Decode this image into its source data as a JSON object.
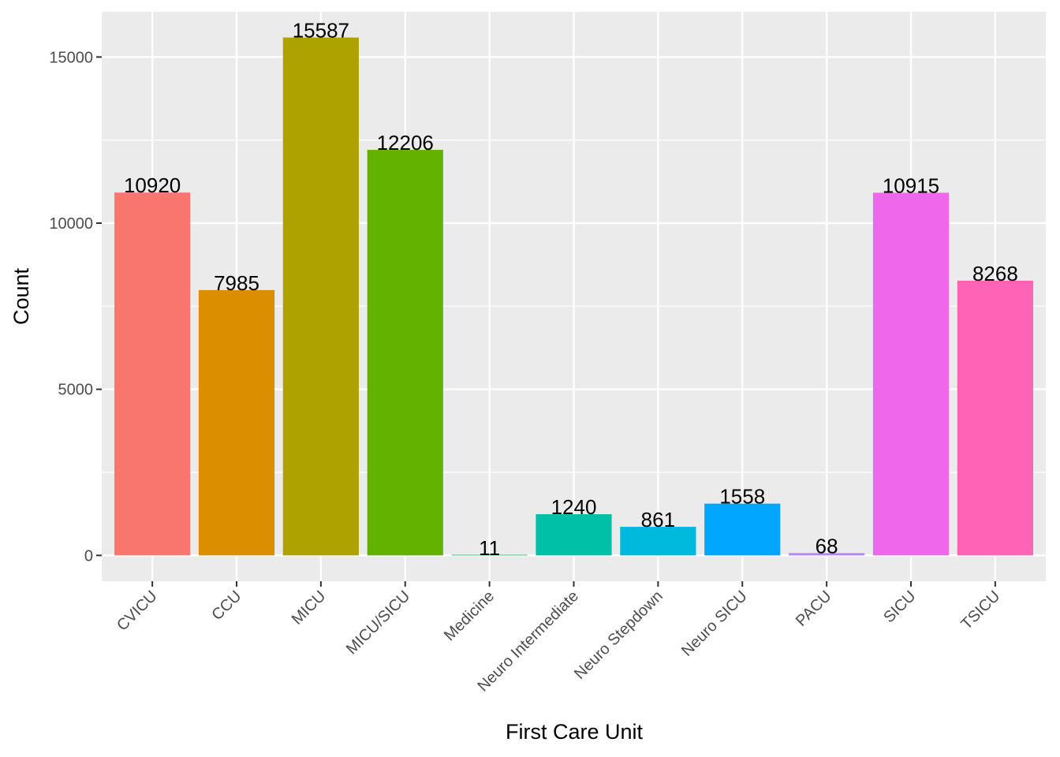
{
  "chart_data": {
    "type": "bar",
    "xlabel": "First Care Unit",
    "ylabel": "Count",
    "ylim": [
      -775,
      16360
    ],
    "yticks": [
      0,
      5000,
      10000,
      15000
    ],
    "grid": true,
    "legend": "none",
    "categories": [
      "CVICU",
      "CCU",
      "MICU",
      "MICU/SICU",
      "Medicine",
      "Neuro Intermediate",
      "Neuro Stepdown",
      "Neuro SICU",
      "PACU",
      "SICU",
      "TSICU"
    ],
    "values": [
      10920,
      7985,
      15587,
      12206,
      11,
      1240,
      861,
      1558,
      68,
      10915,
      8268
    ],
    "data_labels": [
      "10920",
      "7985",
      "15587",
      "12206",
      "11",
      "1240",
      "861",
      "1558",
      "68",
      "10915",
      "8268"
    ],
    "colors": [
      "#F8766D",
      "#DB8E00",
      "#AEA200",
      "#64B200",
      "#00BD5C",
      "#00C1A7",
      "#00BADE",
      "#00A6FF",
      "#B385FF",
      "#EF67EB",
      "#FF63B6"
    ],
    "panel_background": "#EBEBEB",
    "grid_color": "#FFFFFF"
  }
}
